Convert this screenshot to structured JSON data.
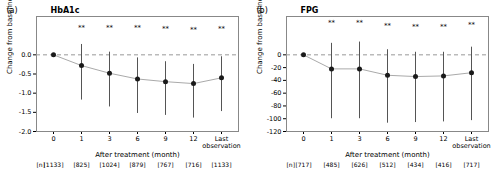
{
  "chart_data": [
    {
      "type": "line",
      "title": "HbA1c",
      "label": "(a)",
      "xlabel": "After treatment (month)",
      "ylabel": "Change from baseline (%)",
      "categories": [
        "0",
        "1",
        "3",
        "6",
        "9",
        "12",
        "Last\nobservation"
      ],
      "values": [
        0.0,
        -0.28,
        -0.48,
        -0.63,
        -0.7,
        -0.75,
        -0.6
      ],
      "error_upper": [
        0.0,
        0.55,
        0.55,
        0.55,
        0.52,
        0.5,
        0.55
      ],
      "error_lower": [
        0.0,
        0.9,
        0.88,
        0.9,
        0.88,
        0.9,
        0.88
      ],
      "n_title": "[n]",
      "n_labels": [
        "[1133]",
        "[825]",
        "[1024]",
        "[879]",
        "[767]",
        "[716]",
        "[1133]"
      ],
      "significance": [
        {
          "category": "1",
          "y": 0.65,
          "text": "**"
        },
        {
          "category": "3",
          "y": 0.65,
          "text": "**"
        },
        {
          "category": "6",
          "y": 0.65,
          "text": "**"
        },
        {
          "category": "9",
          "y": 0.63,
          "text": "**"
        },
        {
          "category": "12",
          "y": 0.6,
          "text": "**"
        },
        {
          "category": "Last\nobservation",
          "y": 0.63,
          "text": "**"
        }
      ],
      "reference_y": 0,
      "color": "#1a1a1a",
      "ylim": [
        -2.0,
        1.0
      ],
      "yticks": [
        {
          "value": 0.0,
          "label": "0.0"
        },
        -0.5,
        {
          "value": -1.0,
          "label": "-1.0"
        },
        -1.5,
        {
          "value": -2.0,
          "label": "-2.0"
        }
      ]
    },
    {
      "type": "line",
      "title": "FPG",
      "label": "(b)",
      "xlabel": "After treatment (month)",
      "ylabel": "Change from baseline (mg/dL)",
      "categories": [
        "0",
        "1",
        "3",
        "6",
        "9",
        "12",
        "Last\nobservation"
      ],
      "values": [
        0.0,
        -22.0,
        -22.0,
        -32.0,
        -34.0,
        -33.0,
        -28.0
      ],
      "error_upper": [
        0.0,
        40.0,
        42.0,
        40.0,
        38.0,
        37.0,
        40.0
      ],
      "error_lower": [
        0.0,
        78.0,
        78.0,
        75.0,
        72.0,
        72.0,
        75.0
      ],
      "n_title": "[n]",
      "n_labels": [
        "[717]",
        "[485]",
        "[626]",
        "[512]",
        "[434]",
        "[416]",
        "[717]"
      ],
      "significance": [
        {
          "category": "1",
          "y": 46,
          "text": "**"
        },
        {
          "category": "3",
          "y": 46,
          "text": "**"
        },
        {
          "category": "6",
          "y": 42,
          "text": "**"
        },
        {
          "category": "9",
          "y": 41,
          "text": "**"
        },
        {
          "category": "12",
          "y": 40,
          "text": "**"
        },
        {
          "category": "Last\nobservation",
          "y": 43,
          "text": "**"
        }
      ],
      "reference_y": 0,
      "color": "#1a1a1a",
      "ylim": [
        -120,
        60
      ],
      "yticks": [
        0,
        -20,
        -40,
        -60,
        -80,
        -100,
        -120
      ]
    }
  ]
}
